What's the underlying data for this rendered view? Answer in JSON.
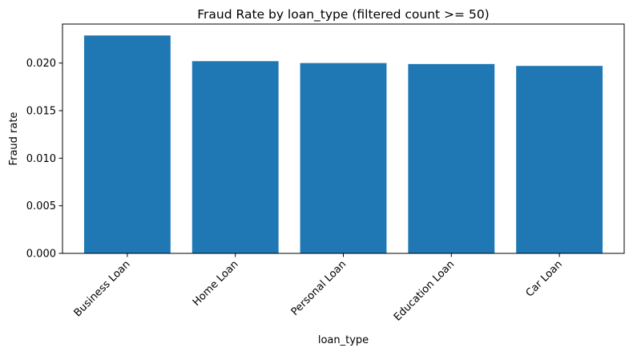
{
  "chart_data": {
    "type": "bar",
    "title": "Fraud Rate by loan_type (filtered count >= 50)",
    "xlabel": "loan_type",
    "ylabel": "Fraud rate",
    "categories": [
      "Business Loan",
      "Home Loan",
      "Personal Loan",
      "Education Loan",
      "Car Loan"
    ],
    "values": [
      0.0229,
      0.0202,
      0.02,
      0.0199,
      0.0197
    ],
    "ylim": [
      0,
      0.0241
    ],
    "yticks": [
      "0.000",
      "0.005",
      "0.010",
      "0.015",
      "0.020"
    ],
    "grid": false,
    "legend": "none",
    "bar_color": "#1f77b4"
  }
}
